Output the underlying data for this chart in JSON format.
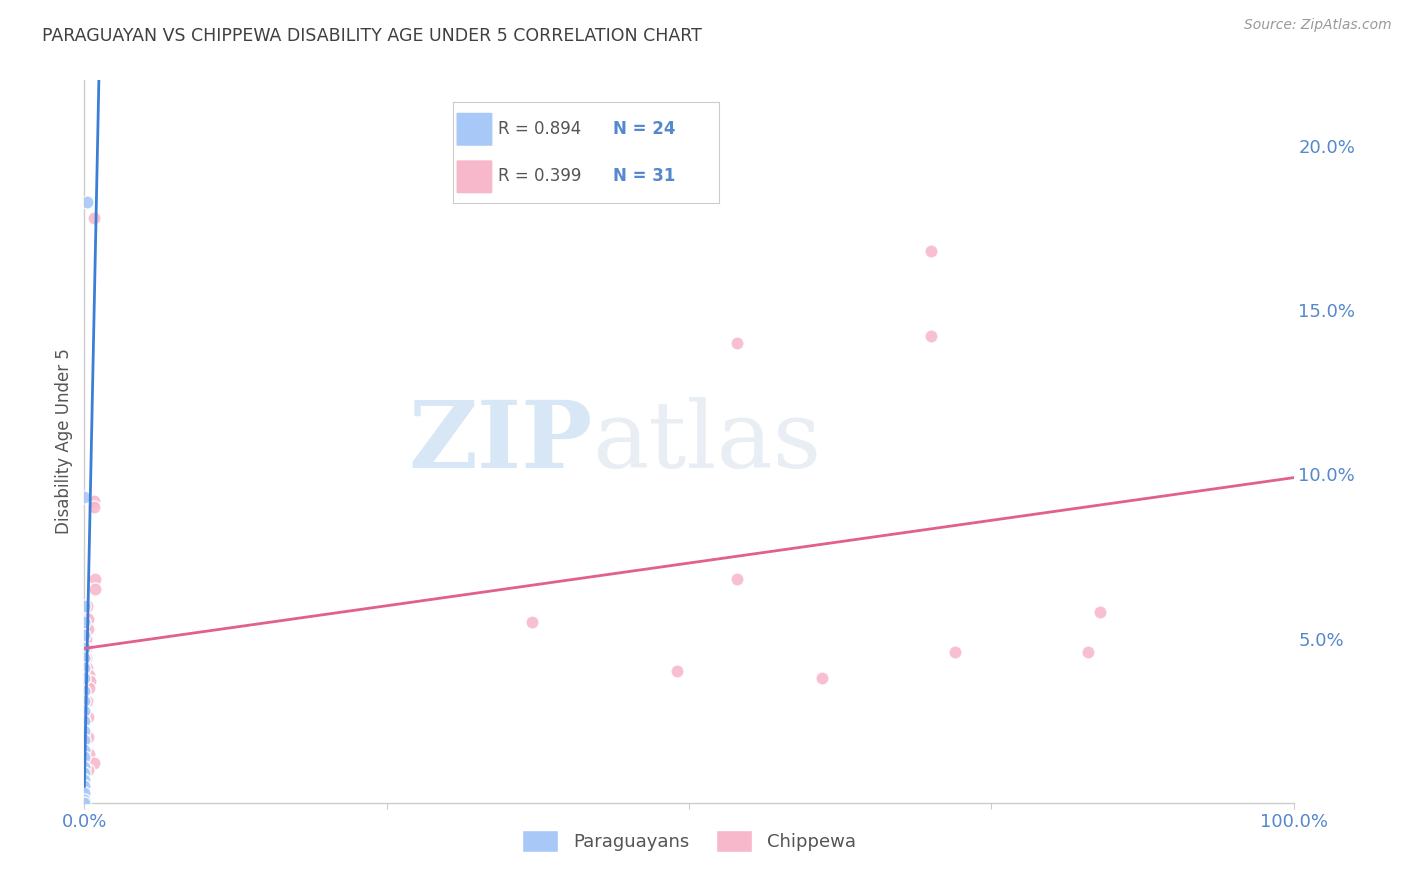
{
  "title": "PARAGUAYAN VS CHIPPEWA DISABILITY AGE UNDER 5 CORRELATION CHART",
  "source": "Source: ZipAtlas.com",
  "ylabel": "Disability Age Under 5",
  "watermark_zip": "ZIP",
  "watermark_atlas": "atlas",
  "legend": {
    "paraguayan": {
      "R": 0.894,
      "N": 24,
      "color": "#a8c8f8",
      "line_color": "#3a7fd5"
    },
    "chippewa": {
      "R": 0.399,
      "N": 31,
      "color": "#f8b8cc",
      "line_color": "#e06090"
    }
  },
  "paraguayan_data": [
    [
      0.002,
      0.183
    ],
    [
      0.0,
      0.093
    ],
    [
      0.0,
      0.06
    ],
    [
      0.0,
      0.055
    ],
    [
      0.0,
      0.051
    ],
    [
      0.0,
      0.047
    ],
    [
      0.0,
      0.044
    ],
    [
      0.0,
      0.041
    ],
    [
      0.0,
      0.038
    ],
    [
      0.0,
      0.034
    ],
    [
      0.0,
      0.031
    ],
    [
      0.0,
      0.028
    ],
    [
      0.0,
      0.025
    ],
    [
      0.0,
      0.022
    ],
    [
      0.0,
      0.019
    ],
    [
      0.0,
      0.016
    ],
    [
      0.0,
      0.014
    ],
    [
      0.0,
      0.011
    ],
    [
      0.0,
      0.009
    ],
    [
      0.0,
      0.007
    ],
    [
      0.0,
      0.005
    ],
    [
      0.0,
      0.003
    ],
    [
      0.0,
      0.001
    ],
    [
      0.0,
      0.0
    ]
  ],
  "chippewa_data": [
    [
      0.008,
      0.178
    ],
    [
      0.008,
      0.092
    ],
    [
      0.008,
      0.09
    ],
    [
      0.009,
      0.068
    ],
    [
      0.009,
      0.065
    ],
    [
      0.002,
      0.06
    ],
    [
      0.003,
      0.056
    ],
    [
      0.003,
      0.053
    ],
    [
      0.001,
      0.05
    ],
    [
      0.001,
      0.047
    ],
    [
      0.001,
      0.044
    ],
    [
      0.002,
      0.041
    ],
    [
      0.004,
      0.039
    ],
    [
      0.005,
      0.037
    ],
    [
      0.004,
      0.035
    ],
    [
      0.002,
      0.031
    ],
    [
      0.003,
      0.026
    ],
    [
      0.003,
      0.02
    ],
    [
      0.004,
      0.015
    ],
    [
      0.008,
      0.012
    ],
    [
      0.003,
      0.01
    ],
    [
      0.54,
      0.14
    ],
    [
      0.54,
      0.068
    ],
    [
      0.37,
      0.055
    ],
    [
      0.7,
      0.168
    ],
    [
      0.7,
      0.142
    ],
    [
      0.72,
      0.046
    ],
    [
      0.83,
      0.046
    ],
    [
      0.84,
      0.058
    ],
    [
      0.49,
      0.04
    ],
    [
      0.61,
      0.038
    ]
  ],
  "xlim": [
    0.0,
    1.0
  ],
  "ylim": [
    0.0,
    0.22
  ],
  "yticks": [
    0.0,
    0.05,
    0.1,
    0.15,
    0.2
  ],
  "ytick_labels": [
    "",
    "5.0%",
    "10.0%",
    "15.0%",
    "20.0%"
  ],
  "xticks": [
    0.0,
    0.25,
    0.5,
    0.75,
    1.0
  ],
  "xtick_labels": [
    "0.0%",
    "",
    "",
    "",
    "100.0%"
  ],
  "background_color": "#ffffff",
  "grid_color": "#dddddd",
  "title_color": "#404040",
  "axis_tick_color": "#5588cc",
  "marker_size": 90,
  "paraguayan_line": {
    "x0": 0.0,
    "y0": 0.005,
    "x1": 0.012,
    "y1": 0.22
  },
  "chippewa_line": {
    "x0": 0.0,
    "y0": 0.047,
    "x1": 1.0,
    "y1": 0.099
  }
}
